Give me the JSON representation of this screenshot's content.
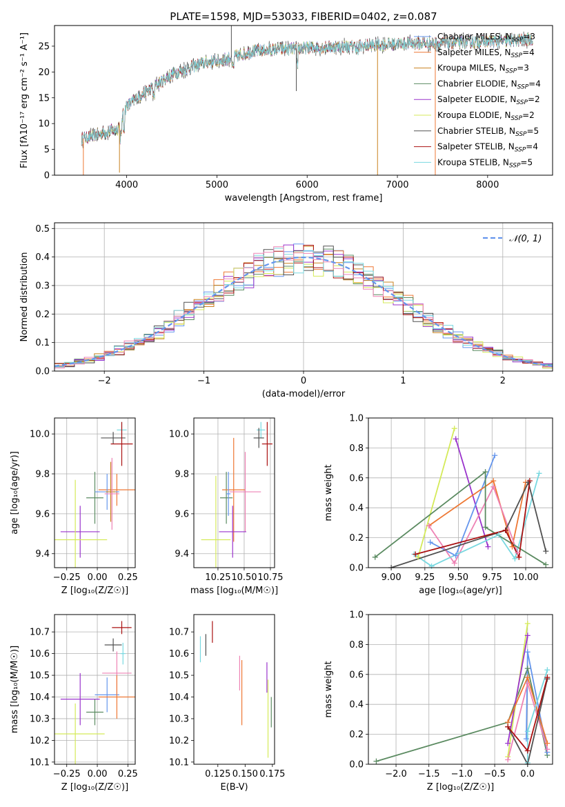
{
  "colors": {
    "chabrier_miles": "#6495ed",
    "salpeter_miles": "#ee7733",
    "kroupa_miles": "#c8801e",
    "chabrier_elodie": "#5a8a60",
    "salpeter_elodie": "#9932cc",
    "kroupa_elodie": "#d4ea58",
    "chabrier_stelib": "#505050",
    "salpeter_stelib": "#aa1010",
    "kroupa_stelib": "#78d8e0",
    "pink": "#ee82b4",
    "gaussian": "#6495ed",
    "grid": "#b0b0b0"
  },
  "chart_data": [
    {
      "id": "spectrum",
      "type": "line",
      "title": "PLATE=1598, MJD=53033, FIBERID=0402, z=0.087",
      "xlabel": "wavelength [Angstrom, rest frame]",
      "ylabel": "Flux [fλ10⁻¹⁷ erg cm⁻² s⁻¹ A⁻¹]",
      "xlim": [
        3200,
        8720
      ],
      "ylim": [
        0,
        29
      ],
      "xticks": [
        "4000",
        "5000",
        "6000",
        "7000",
        "8000"
      ],
      "yticks": [
        "0",
        "5",
        "10",
        "15",
        "20",
        "25"
      ],
      "grid": false,
      "legend_position": "top-right",
      "legend": [
        {
          "label": "Chabrier MILES, N_SSP=3",
          "color": "chabrier_miles"
        },
        {
          "label": "Salpeter MILES, N_SSP=4",
          "color": "salpeter_miles"
        },
        {
          "label": "Kroupa MILES, N_SSP=3",
          "color": "kroupa_miles"
        },
        {
          "label": "Chabrier ELODIE, N_SSP=4",
          "color": "chabrier_elodie"
        },
        {
          "label": "Salpeter ELODIE, N_SSP=2",
          "color": "salpeter_elodie"
        },
        {
          "label": "Kroupa ELODIE, N_SSP=2",
          "color": "kroupa_elodie"
        },
        {
          "label": "Chabrier STELIB, N_SSP=5",
          "color": "chabrier_stelib"
        },
        {
          "label": "Salpeter STELIB, N_SSP=4",
          "color": "salpeter_stelib"
        },
        {
          "label": "Kroupa STELIB, N_SSP=5",
          "color": "kroupa_stelib"
        }
      ],
      "continuum": {
        "x": [
          3500,
          3700,
          3900,
          4000,
          4200,
          4500,
          4800,
          5100,
          5400,
          5800,
          6200,
          6600,
          7000,
          7400,
          7800,
          8200,
          8500
        ],
        "y": [
          7,
          8,
          9,
          13.5,
          16,
          19.5,
          21.5,
          22.5,
          24,
          24.5,
          24.8,
          25,
          25.5,
          25.5,
          25.8,
          26,
          26.3
        ]
      },
      "spikes": [
        {
          "x": 3520,
          "y": 0,
          "color": "salpeter_miles"
        },
        {
          "x": 3920,
          "y": 0.5,
          "color": "kroupa_miles"
        },
        {
          "x": 5160,
          "y": 29,
          "color": "chabrier_stelib"
        },
        {
          "x": 5880,
          "y": 16.3,
          "color": "chabrier_stelib"
        },
        {
          "x": 6780,
          "y": 0,
          "color": "kroupa_miles"
        },
        {
          "x": 7420,
          "y": 0,
          "color": "salpeter_miles"
        }
      ]
    },
    {
      "id": "residuals",
      "type": "histogram",
      "xlabel": "(data-model)/error",
      "ylabel": "Normed distribution",
      "xlim": [
        -2.5,
        2.5
      ],
      "ylim": [
        0,
        0.52
      ],
      "xticks": [
        "−2",
        "−1",
        "0",
        "1",
        "2"
      ],
      "yticks": [
        "0.0",
        "0.1",
        "0.2",
        "0.3",
        "0.4",
        "0.5"
      ],
      "grid": true,
      "legend_position": "top-right",
      "legend": [
        {
          "label": "𝒩(0, 1)",
          "style": "dashed",
          "color": "gaussian"
        }
      ],
      "bin_width": 0.1,
      "bin_start": -2.5
    },
    {
      "id": "age-vs-z",
      "type": "scatter",
      "xlabel": "Z [log₁₀(Z/Z☉)]",
      "ylabel": "age  [log₁₀(age/yr)]",
      "xlim": [
        -0.35,
        0.31
      ],
      "ylim": [
        9.33,
        10.08
      ],
      "xticks": [
        "−0.25",
        "0.00",
        "0.25"
      ],
      "yticks": [
        "9.4",
        "9.6",
        "9.8",
        "10.0"
      ],
      "grid": true,
      "points": [
        {
          "x": 0.2,
          "y": 10.02,
          "xerr": 0.04,
          "yerr": 0.04,
          "color": "kroupa_stelib"
        },
        {
          "x": 0.13,
          "y": 9.98,
          "xerr": 0.1,
          "yerr": 0.03,
          "color": "chabrier_stelib"
        },
        {
          "x": 0.2,
          "y": 9.95,
          "xerr": 0.09,
          "yerr": 0.11,
          "color": "salpeter_stelib"
        },
        {
          "x": -0.02,
          "y": 9.68,
          "xerr": 0.07,
          "yerr": 0.13,
          "color": "chabrier_elodie"
        },
        {
          "x": 0.16,
          "y": 9.72,
          "xerr": 0.15,
          "yerr": 0.08,
          "color": "salpeter_miles"
        },
        {
          "x": 0.08,
          "y": 9.71,
          "xerr": 0.1,
          "yerr": 0.09,
          "color": "chabrier_miles"
        },
        {
          "x": 0.11,
          "y": 9.71,
          "xerr": 0.04,
          "yerr": 0.15,
          "color": "kroupa_miles"
        },
        {
          "x": 0.12,
          "y": 9.7,
          "xerr": 0.06,
          "yerr": 0.18,
          "color": "pink"
        },
        {
          "x": -0.14,
          "y": 9.51,
          "xerr": 0.16,
          "yerr": 0.13,
          "color": "salpeter_elodie"
        },
        {
          "x": -0.18,
          "y": 9.47,
          "xerr": 0.26,
          "yerr": 0.3,
          "color": "kroupa_elodie"
        }
      ]
    },
    {
      "id": "age-vs-mass",
      "type": "scatter",
      "xlabel": "mass [log₁₀(M/M☉)]",
      "ylabel": "",
      "xlim": [
        10.02,
        10.79
      ],
      "ylim": [
        9.33,
        10.08
      ],
      "xticks": [
        "10.25",
        "10.50",
        "10.75"
      ],
      "yticks": [
        "9.4",
        "9.6",
        "9.8",
        "10.0"
      ],
      "grid": true,
      "points": [
        {
          "x": 10.66,
          "y": 10.02,
          "xerr": 0.04,
          "yerr": 0.04,
          "color": "kroupa_stelib"
        },
        {
          "x": 10.64,
          "y": 9.98,
          "xerr": 0.05,
          "yerr": 0.05,
          "color": "chabrier_stelib"
        },
        {
          "x": 10.72,
          "y": 9.95,
          "xerr": 0.05,
          "yerr": 0.11,
          "color": "salpeter_stelib"
        },
        {
          "x": 10.33,
          "y": 9.68,
          "xerr": 0.06,
          "yerr": 0.13,
          "color": "chabrier_elodie"
        },
        {
          "x": 10.4,
          "y": 9.72,
          "xerr": 0.11,
          "yerr": 0.26,
          "color": "salpeter_miles"
        },
        {
          "x": 10.35,
          "y": 9.7,
          "xerr": 0.02,
          "yerr": 0.11,
          "color": "chabrier_miles"
        },
        {
          "x": 10.51,
          "y": 9.71,
          "xerr": 0.15,
          "yerr": 0.2,
          "color": "pink"
        },
        {
          "x": 10.39,
          "y": 9.51,
          "xerr": 0.13,
          "yerr": 0.13,
          "color": "salpeter_elodie"
        },
        {
          "x": 10.23,
          "y": 9.47,
          "xerr": 0.14,
          "yerr": 0.32,
          "color": "kroupa_elodie"
        }
      ]
    },
    {
      "id": "weight-vs-age",
      "type": "line",
      "xlabel": "age  [log₁₀(age/yr)]",
      "ylabel": "mass weight",
      "xlim": [
        8.83,
        10.2
      ],
      "ylim": [
        0,
        1
      ],
      "xticks": [
        "9.00",
        "9.25",
        "9.50",
        "9.75",
        "10.00"
      ],
      "yticks": [
        "0.0",
        "0.2",
        "0.4",
        "0.6",
        "0.8",
        "1.0"
      ],
      "grid": true,
      "series": [
        {
          "color": "kroupa_elodie",
          "x": [
            9.2,
            9.47
          ],
          "y": [
            0.07,
            0.93
          ]
        },
        {
          "color": "salpeter_elodie",
          "x": [
            9.48,
            9.72
          ],
          "y": [
            0.86,
            0.14
          ]
        },
        {
          "color": "chabrier_miles",
          "x": [
            9.29,
            9.48,
            9.77
          ],
          "y": [
            0.17,
            0.08,
            0.75
          ]
        },
        {
          "color": "salpeter_miles",
          "x": [
            9.28,
            9.76,
            9.9,
            10.0
          ],
          "y": [
            0.28,
            0.58,
            0.14,
            0.57
          ]
        },
        {
          "color": "pink",
          "x": [
            9.28,
            9.47,
            9.76,
            9.94
          ],
          "y": [
            0.28,
            0.03,
            0.54,
            0.1
          ]
        },
        {
          "color": "kroupa_stelib",
          "x": [
            9.17,
            9.3,
            9.8,
            9.92,
            10.1
          ],
          "y": [
            0.09,
            0.01,
            0.22,
            0.06,
            0.63
          ]
        },
        {
          "color": "chabrier_elodie",
          "x": [
            8.88,
            9.7,
            9.7,
            10.15
          ],
          "y": [
            0.07,
            0.64,
            0.27,
            0.02
          ]
        },
        {
          "color": "chabrier_stelib",
          "x": [
            9.0,
            9.85,
            10.02,
            10.15
          ],
          "y": [
            0.0,
            0.25,
            0.57,
            0.11
          ]
        },
        {
          "color": "salpeter_stelib",
          "x": [
            9.18,
            9.85,
            9.95,
            10.03
          ],
          "y": [
            0.09,
            0.25,
            0.07,
            0.58
          ]
        }
      ]
    },
    {
      "id": "mass-vs-z",
      "type": "scatter",
      "xlabel": "Z [log₁₀(Z/Z☉)]",
      "ylabel": "mass [log₁₀(M/M☉)]",
      "xlim": [
        -0.35,
        0.31
      ],
      "ylim": [
        10.09,
        10.78
      ],
      "xticks": [
        "−0.25",
        "0.00",
        "0.25"
      ],
      "yticks": [
        "10.1",
        "10.2",
        "10.3",
        "10.4",
        "10.5",
        "10.6",
        "10.7"
      ],
      "grid": true,
      "points": [
        {
          "x": 0.2,
          "y": 10.72,
          "xerr": 0.08,
          "yerr": 0.03,
          "color": "salpeter_stelib"
        },
        {
          "x": 0.13,
          "y": 10.64,
          "xerr": 0.07,
          "yerr": 0.03,
          "color": "chabrier_stelib"
        },
        {
          "x": 0.21,
          "y": 10.6,
          "xerr": 0.02,
          "yerr": 0.05,
          "color": "kroupa_stelib"
        },
        {
          "x": 0.16,
          "y": 10.51,
          "xerr": 0.12,
          "yerr": 0.1,
          "color": "pink"
        },
        {
          "x": 0.08,
          "y": 10.41,
          "xerr": 0.1,
          "yerr": 0.08,
          "color": "chabrier_miles"
        },
        {
          "x": 0.16,
          "y": 10.4,
          "xerr": 0.15,
          "yerr": 0.1,
          "color": "salpeter_miles"
        },
        {
          "x": -0.14,
          "y": 10.39,
          "xerr": 0.16,
          "yerr": 0.12,
          "color": "salpeter_elodie"
        },
        {
          "x": -0.02,
          "y": 10.33,
          "xerr": 0.07,
          "yerr": 0.06,
          "color": "chabrier_elodie"
        },
        {
          "x": -0.18,
          "y": 10.23,
          "xerr": 0.24,
          "yerr": 0.14,
          "color": "kroupa_elodie"
        }
      ]
    },
    {
      "id": "mass-vs-ebv",
      "type": "scatter",
      "xlabel": "E(B-V)",
      "ylabel": "",
      "xlim": [
        0.103,
        0.177
      ],
      "ylim": [
        10.09,
        10.78
      ],
      "xticks": [
        "0.125",
        "0.150",
        "0.175"
      ],
      "yticks": [
        "10.1",
        "10.2",
        "10.3",
        "10.4",
        "10.5",
        "10.6",
        "10.7"
      ],
      "grid": false,
      "points": [
        {
          "x": 0.12,
          "y": 10.7,
          "xerr": 0,
          "yerr": 0.05,
          "color": "salpeter_stelib"
        },
        {
          "x": 0.114,
          "y": 10.64,
          "xerr": 0,
          "yerr": 0.05,
          "color": "chabrier_stelib"
        },
        {
          "x": 0.109,
          "y": 10.62,
          "xerr": 0,
          "yerr": 0.06,
          "color": "kroupa_stelib"
        },
        {
          "x": 0.145,
          "y": 10.51,
          "xerr": 0,
          "yerr": 0.08,
          "color": "pink"
        },
        {
          "x": 0.147,
          "y": 10.42,
          "xerr": 0,
          "yerr": 0.15,
          "color": "salpeter_miles"
        },
        {
          "x": 0.17,
          "y": 10.49,
          "xerr": 0,
          "yerr": 0.07,
          "color": "salpeter_elodie"
        },
        {
          "x": 0.171,
          "y": 10.3,
          "xerr": 0,
          "yerr": 0.18,
          "color": "kroupa_elodie"
        },
        {
          "x": 0.174,
          "y": 10.33,
          "xerr": 0,
          "yerr": 0.07,
          "color": "chabrier_elodie"
        }
      ]
    },
    {
      "id": "weight-vs-z",
      "type": "line",
      "xlabel": "Z [log₁₀(Z/Z☉)]",
      "ylabel": "mass weight",
      "xlim": [
        -2.42,
        0.38
      ],
      "ylim": [
        0,
        1
      ],
      "xticks": [
        "−2.0",
        "−1.5",
        "−1.0",
        "−0.5",
        "0.0"
      ],
      "yticks": [
        "0.0",
        "0.2",
        "0.4",
        "0.6",
        "0.8",
        "1.0"
      ],
      "grid": true,
      "series": [
        {
          "color": "chabrier_elodie",
          "x": [
            -2.3,
            -0.3,
            0.0,
            0.3
          ],
          "y": [
            0.02,
            0.28,
            0.64,
            0.06
          ]
        },
        {
          "color": "kroupa_elodie",
          "x": [
            -0.3,
            0.0
          ],
          "y": [
            0.05,
            0.94
          ]
        },
        {
          "color": "salpeter_elodie",
          "x": [
            -0.3,
            0.0
          ],
          "y": [
            0.14,
            0.86
          ]
        },
        {
          "color": "chabrier_miles",
          "x": [
            -0.02,
            0.0,
            0.3
          ],
          "y": [
            0.17,
            0.75,
            0.08
          ]
        },
        {
          "color": "salpeter_miles",
          "x": [
            -0.3,
            0.0,
            0.3
          ],
          "y": [
            0.28,
            0.58,
            0.14
          ]
        },
        {
          "color": "pink",
          "x": [
            -0.3,
            0.0,
            0.3
          ],
          "y": [
            0.03,
            0.54,
            0.1
          ]
        },
        {
          "color": "kroupa_stelib",
          "x": [
            0.0,
            0.0,
            0.3
          ],
          "y": [
            0.01,
            0.22,
            0.63
          ]
        },
        {
          "color": "chabrier_stelib",
          "x": [
            -0.3,
            0.0,
            0.3
          ],
          "y": [
            0.25,
            0.0,
            0.57
          ]
        },
        {
          "color": "salpeter_stelib",
          "x": [
            -0.3,
            0.0,
            0.3
          ],
          "y": [
            0.25,
            0.09,
            0.58
          ]
        }
      ]
    }
  ]
}
